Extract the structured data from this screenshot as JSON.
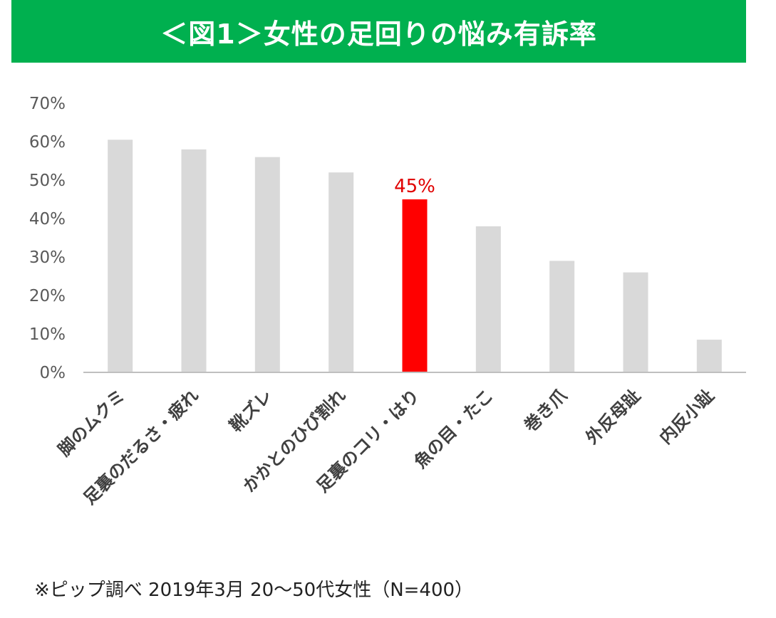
{
  "banner": {
    "title": "＜図1＞女性の足回りの悩み有訴率"
  },
  "colors": {
    "banner_bg": "#00b04f",
    "bar": "#d9d9d9",
    "highlight": "#ff0000",
    "label_highlight": "#e00000",
    "axis": "#bfbfbf",
    "tick_text": "#595959",
    "category_text": "#404040"
  },
  "chart_data": {
    "type": "bar",
    "categories": [
      "脚のムクミ",
      "足裏のだるさ・疲れ",
      "靴ズレ",
      "かかとのひび割れ",
      "足裏のコリ・はり",
      "魚の目・たこ",
      "巻き爪",
      "外反母趾",
      "内反小趾"
    ],
    "values": [
      60.5,
      58,
      56,
      52,
      45,
      38,
      29,
      26,
      8.5
    ],
    "highlight_index": 4,
    "data_label": "45%",
    "title": "",
    "xlabel": "",
    "ylabel": "",
    "ylim": [
      0,
      70
    ],
    "yticks": [
      "0%",
      "10%",
      "20%",
      "30%",
      "40%",
      "50%",
      "60%",
      "70%"
    ],
    "grid": false,
    "legend": "none"
  },
  "footnote": "※ピップ調べ 2019年3月 20～50代女性（N=400）"
}
